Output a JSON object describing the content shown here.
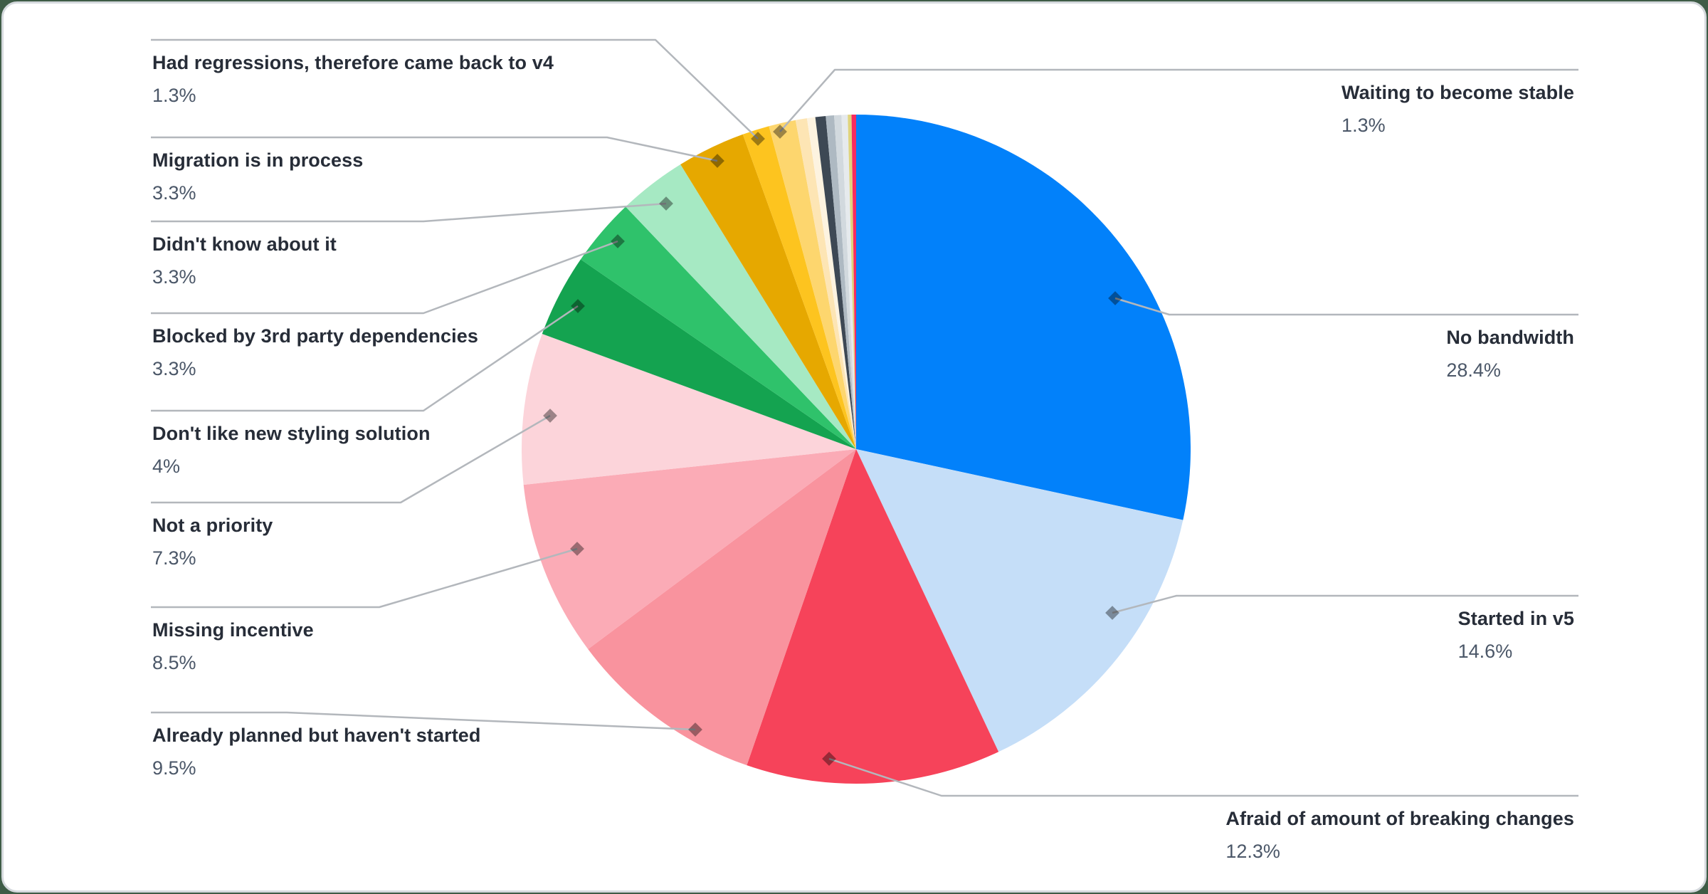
{
  "canvas": {
    "page_background": "#3e5c46",
    "card_background": "#ffffff",
    "card_border": "#d5d9dd",
    "leader_line_color": "#b3b7bc",
    "leader_dot_color": "rgba(0,0,0,0.38)",
    "label_title_color": "#272d38",
    "label_percent_color": "#4b5768"
  },
  "chart_data": {
    "type": "pie",
    "title": "",
    "legend_position": "callout-labels",
    "direction": "clockwise",
    "start_angle_deg": 0,
    "series": [
      {
        "id": "no-bandwidth",
        "label": "No bandwidth",
        "value": 28.4,
        "display": "28.4%",
        "color": "#0281fa"
      },
      {
        "id": "started-in-v5",
        "label": "Started in v5",
        "value": 14.6,
        "display": "14.6%",
        "color": "#c5def8"
      },
      {
        "id": "afraid-of-breaking-changes",
        "label": "Afraid of amount of breaking changes",
        "value": 12.3,
        "display": "12.3%",
        "color": "#f6435a"
      },
      {
        "id": "already-planned",
        "label": "Already planned but haven't started",
        "value": 9.5,
        "display": "9.5%",
        "color": "#f9939e"
      },
      {
        "id": "missing-incentive",
        "label": "Missing incentive",
        "value": 8.5,
        "display": "8.5%",
        "color": "#fbabb6"
      },
      {
        "id": "not-a-priority",
        "label": "Not a priority",
        "value": 7.3,
        "display": "7.3%",
        "color": "#fcd4da"
      },
      {
        "id": "dont-like-new-styling",
        "label": "Don't like new styling solution",
        "value": 4,
        "display": "4%",
        "color": "#14a350"
      },
      {
        "id": "blocked-by-3rd-party",
        "label": "Blocked by 3rd party dependencies",
        "value": 3.3,
        "display": "3.3%",
        "color": "#2fc26b"
      },
      {
        "id": "didnt-know-about-it",
        "label": "Didn't know about it",
        "value": 3.3,
        "display": "3.3%",
        "color": "#a6e9c3"
      },
      {
        "id": "migration-in-process",
        "label": "Migration is in process",
        "value": 3.3,
        "display": "3.3%",
        "color": "#e6a800"
      },
      {
        "id": "had-regressions",
        "label": "Had regressions, therefore came back to v4",
        "value": 1.3,
        "display": "1.3%",
        "color": "#fdc41f"
      },
      {
        "id": "waiting-to-become-stable",
        "label": "Waiting to become stable",
        "value": 1.3,
        "display": "1.3%",
        "color": "#fdd66e"
      }
    ],
    "unlabeled_small_slices": [
      {
        "id": "other-cream",
        "value": 0.55,
        "color": "#fde5b4"
      },
      {
        "id": "other-pale-cream",
        "value": 0.4,
        "color": "#fdf3e0"
      },
      {
        "id": "other-slate",
        "value": 0.5,
        "color": "#3d4854"
      },
      {
        "id": "other-gray",
        "value": 0.4,
        "color": "#aeb9c2"
      },
      {
        "id": "other-light-gray",
        "value": 0.35,
        "color": "#d2d9de"
      },
      {
        "id": "other-pale-gray",
        "value": 0.3,
        "color": "#e6eaed"
      },
      {
        "id": "other-khaki",
        "value": 0.18,
        "color": "#e0d37c"
      },
      {
        "id": "other-magenta",
        "value": 0.22,
        "color": "#f72b60"
      }
    ]
  }
}
